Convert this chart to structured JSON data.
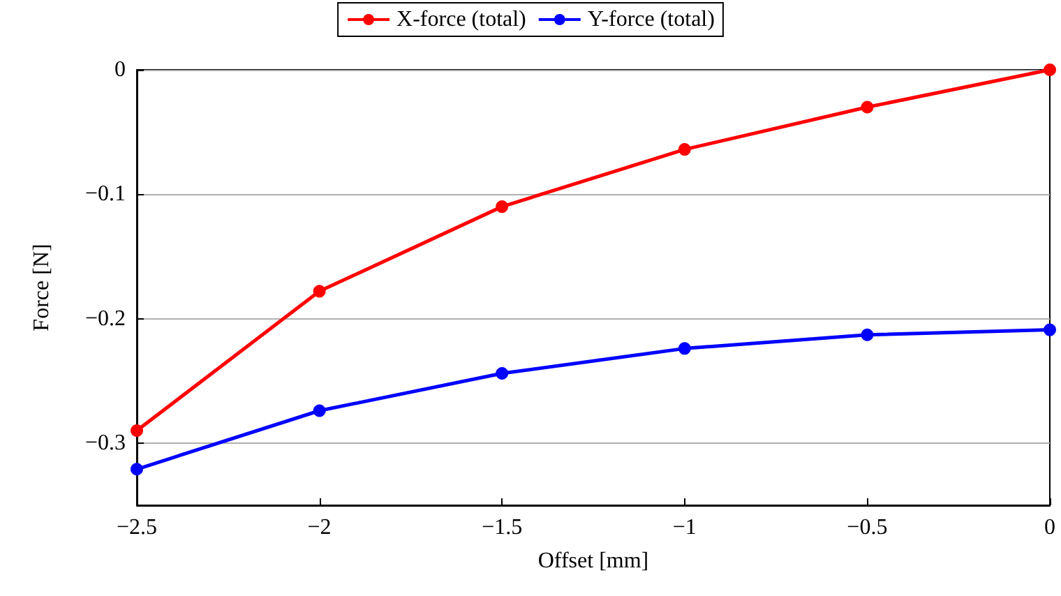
{
  "chart_data": {
    "type": "line",
    "xlabel": "Offset [mm]",
    "ylabel": "Force [N]",
    "x": [
      -2.5,
      -2,
      -1.5,
      -1,
      -0.5,
      0
    ],
    "series": [
      {
        "name": "X-force (total)",
        "color": "#ff0000",
        "values": [
          -0.29,
          -0.178,
          -0.11,
          -0.064,
          -0.03,
          0
        ]
      },
      {
        "name": "Y-force (total)",
        "color": "#0000ff",
        "values": [
          -0.321,
          -0.274,
          -0.244,
          -0.224,
          -0.213,
          -0.209
        ]
      }
    ],
    "xlim": [
      -2.5,
      0
    ],
    "xticks": [
      {
        "value": -2.5,
        "label": "−2.5"
      },
      {
        "value": -2,
        "label": "−2"
      },
      {
        "value": -1.5,
        "label": "−1.5"
      },
      {
        "value": -1,
        "label": "−1"
      },
      {
        "value": -0.5,
        "label": "−0.5"
      },
      0
    ],
    "ylim": [
      -0.35,
      0
    ],
    "yticks": [
      {
        "value": -0.3,
        "label": "−0.3"
      },
      {
        "value": -0.2,
        "label": "−0.2"
      },
      {
        "value": -0.1,
        "label": "−0.1"
      },
      0
    ],
    "grid": "y",
    "legend": "top",
    "marker": "circle",
    "line_style": "solid"
  }
}
